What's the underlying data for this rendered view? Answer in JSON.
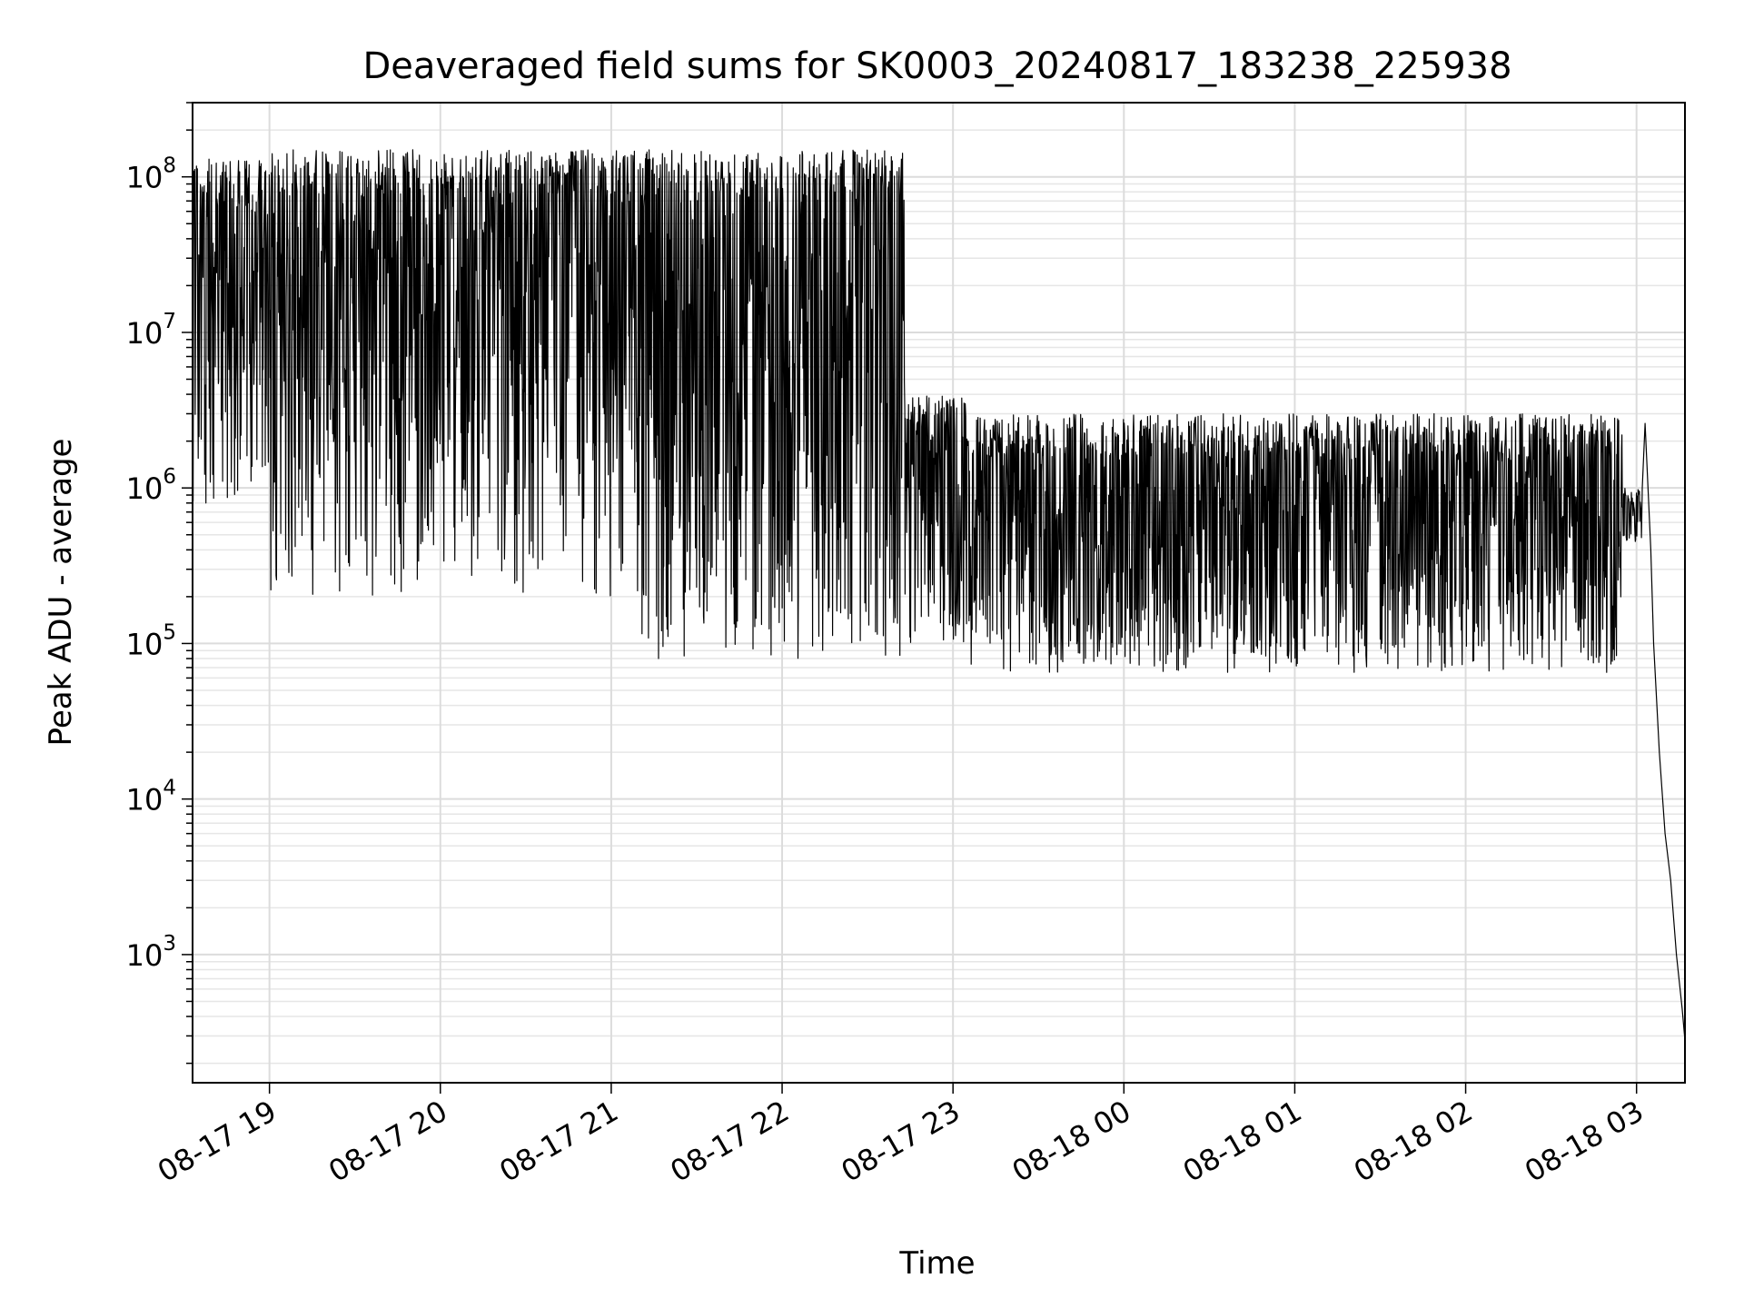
{
  "chart_data": {
    "type": "line",
    "title": "Deaveraged field sums for SK0003_20240817_183238_225938",
    "xlabel": "Time",
    "ylabel": "Peak ADU - average",
    "yscale": "log",
    "xlim": [
      "2024-08-17 18:33",
      "2024-08-18 03:17"
    ],
    "ylim": [
      150,
      300000000
    ],
    "grid": true,
    "legend": "none",
    "line_color": "#000000",
    "x_ticks": [
      {
        "label": "08-17 19",
        "hour": "2024-08-17 19:00"
      },
      {
        "label": "08-17 20",
        "hour": "2024-08-17 20:00"
      },
      {
        "label": "08-17 21",
        "hour": "2024-08-17 21:00"
      },
      {
        "label": "08-17 22",
        "hour": "2024-08-17 22:00"
      },
      {
        "label": "08-17 23",
        "hour": "2024-08-17 23:00"
      },
      {
        "label": "08-18 00",
        "hour": "2024-08-18 00:00"
      },
      {
        "label": "08-18 01",
        "hour": "2024-08-18 01:00"
      },
      {
        "label": "08-18 02",
        "hour": "2024-08-18 02:00"
      },
      {
        "label": "08-18 03",
        "hour": "2024-08-18 03:00"
      }
    ],
    "y_ticks": [
      {
        "base": "10",
        "exp": "3",
        "value": 1000
      },
      {
        "base": "10",
        "exp": "4",
        "value": 10000
      },
      {
        "base": "10",
        "exp": "5",
        "value": 100000
      },
      {
        "base": "10",
        "exp": "6",
        "value": 1000000
      },
      {
        "base": "10",
        "exp": "7",
        "value": 10000000
      },
      {
        "base": "10",
        "exp": "8",
        "value": 100000000
      }
    ],
    "segments": [
      {
        "start": "2024-08-17 18:33",
        "end": "2024-08-17 19:00",
        "upper": 130000000,
        "lower": 3000000,
        "min": 700000
      },
      {
        "start": "2024-08-17 19:00",
        "end": "2024-08-17 21:10",
        "upper": 150000000,
        "lower": 1500000,
        "min": 200000
      },
      {
        "start": "2024-08-17 21:10",
        "end": "2024-08-17 22:43",
        "upper": 150000000,
        "lower": 300000,
        "min": 80000
      },
      {
        "start": "2024-08-17 22:43",
        "end": "2024-08-17 23:05",
        "upper": 4000000,
        "lower": 150000,
        "min": 100000
      },
      {
        "start": "2024-08-17 23:05",
        "end": "2024-08-18 02:55",
        "upper": 3000000,
        "lower": 130000,
        "min": 65000
      },
      {
        "start": "2024-08-18 02:55",
        "end": "2024-08-18 03:02",
        "upper": 1000000,
        "lower": 500000,
        "min": 450000
      }
    ],
    "tail": [
      {
        "t": "2024-08-18 03:02",
        "v": 1000000
      },
      {
        "t": "2024-08-18 03:03",
        "v": 2600000
      },
      {
        "t": "2024-08-18 03:05",
        "v": 400000
      },
      {
        "t": "2024-08-18 03:06",
        "v": 100000
      },
      {
        "t": "2024-08-18 03:08",
        "v": 20000
      },
      {
        "t": "2024-08-18 03:10",
        "v": 6000
      },
      {
        "t": "2024-08-18 03:12",
        "v": 3000
      },
      {
        "t": "2024-08-18 03:14",
        "v": 1000
      },
      {
        "t": "2024-08-18 03:16",
        "v": 450
      },
      {
        "t": "2024-08-18 03:17",
        "v": 280
      }
    ]
  }
}
